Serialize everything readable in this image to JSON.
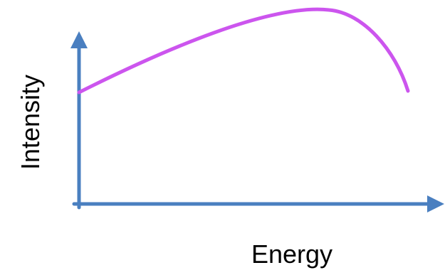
{
  "chart_data": {
    "type": "line",
    "xlabel": "Energy",
    "ylabel": "Intensity",
    "grid": false,
    "series": [
      {
        "color": "#cc55ee",
        "shape": "rises from a nonzero level at the left edge, peaks near the right, then drops steeply"
      }
    ]
  },
  "colors": {
    "axis": "#4a7fc0",
    "curve": "#cc55ee",
    "text": "#000000",
    "background": "#ffffff"
  }
}
